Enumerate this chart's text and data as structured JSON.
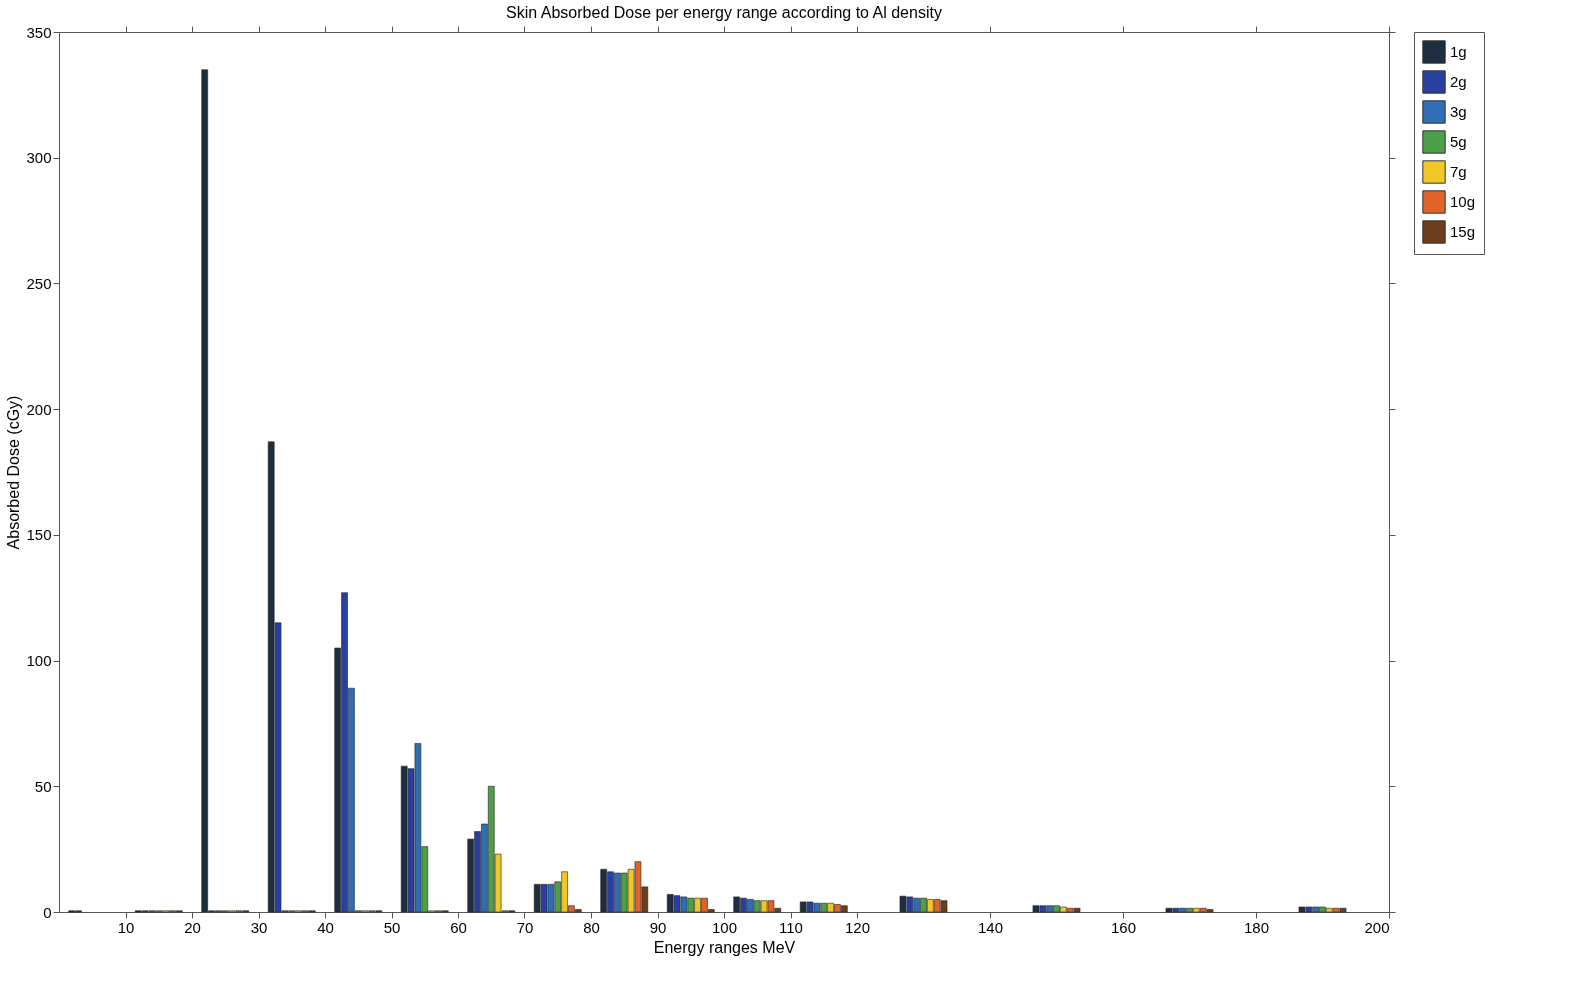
{
  "chart_data": {
    "type": "bar",
    "title": "Skin Absorbed Dose per energy range according to Al density",
    "xlabel": "Energy ranges MeV",
    "ylabel": "Absorbed Dose (cGy)",
    "x": [
      5,
      15,
      25,
      35,
      45,
      55,
      65,
      75,
      85,
      95,
      105,
      115,
      130,
      150,
      170,
      190
    ],
    "xlim": [
      0,
      200
    ],
    "xticks": [
      10,
      20,
      30,
      40,
      50,
      60,
      70,
      80,
      90,
      100,
      110,
      120,
      140,
      160,
      180,
      200
    ],
    "ylim": [
      0,
      350
    ],
    "yticks": [
      0,
      50,
      100,
      150,
      200,
      250,
      300,
      350
    ],
    "grid": false,
    "legend": "right",
    "series": [
      {
        "name": "1g",
        "color": "#1f2d40",
        "values": [
          0.5,
          0.5,
          335,
          187,
          105,
          58,
          29,
          11,
          17,
          7,
          6,
          4,
          6.3,
          2.5,
          1.5,
          2
        ]
      },
      {
        "name": "2g",
        "color": "#2a40a0",
        "values": [
          0.5,
          0.5,
          0.5,
          115,
          127,
          57,
          32,
          11,
          16,
          6.5,
          5.5,
          4,
          6,
          2.5,
          1.5,
          2
        ]
      },
      {
        "name": "3g",
        "color": "#2f6db5",
        "values": [
          null,
          0.5,
          0.5,
          0.5,
          89,
          67,
          35,
          11,
          15.5,
          6,
          5,
          3.5,
          5.5,
          2.5,
          1.5,
          2
        ]
      },
      {
        "name": "5g",
        "color": "#4f9e48",
        "values": [
          null,
          0.5,
          0.5,
          0.5,
          0.5,
          26,
          50,
          12,
          15.5,
          5.5,
          4.5,
          3.5,
          5.5,
          2.5,
          1.5,
          2
        ]
      },
      {
        "name": "7g",
        "color": "#f0c628",
        "values": [
          null,
          0.5,
          0.5,
          0.5,
          0.5,
          0.5,
          23,
          16,
          17,
          5.5,
          4.5,
          3.5,
          5,
          2,
          1.5,
          1.5
        ]
      },
      {
        "name": "10g",
        "color": "#e0642a",
        "values": [
          null,
          0.5,
          0.5,
          0.5,
          0.5,
          0.5,
          0.5,
          2.5,
          20,
          5.5,
          4.5,
          3,
          5,
          1.5,
          1.5,
          1.5
        ]
      },
      {
        "name": "15g",
        "color": "#6b3f1e",
        "values": [
          null,
          0.5,
          0.5,
          0.5,
          0.5,
          0.5,
          0.5,
          1,
          10,
          1,
          1.5,
          2.5,
          4.5,
          1.5,
          1,
          1.5
        ]
      }
    ]
  }
}
